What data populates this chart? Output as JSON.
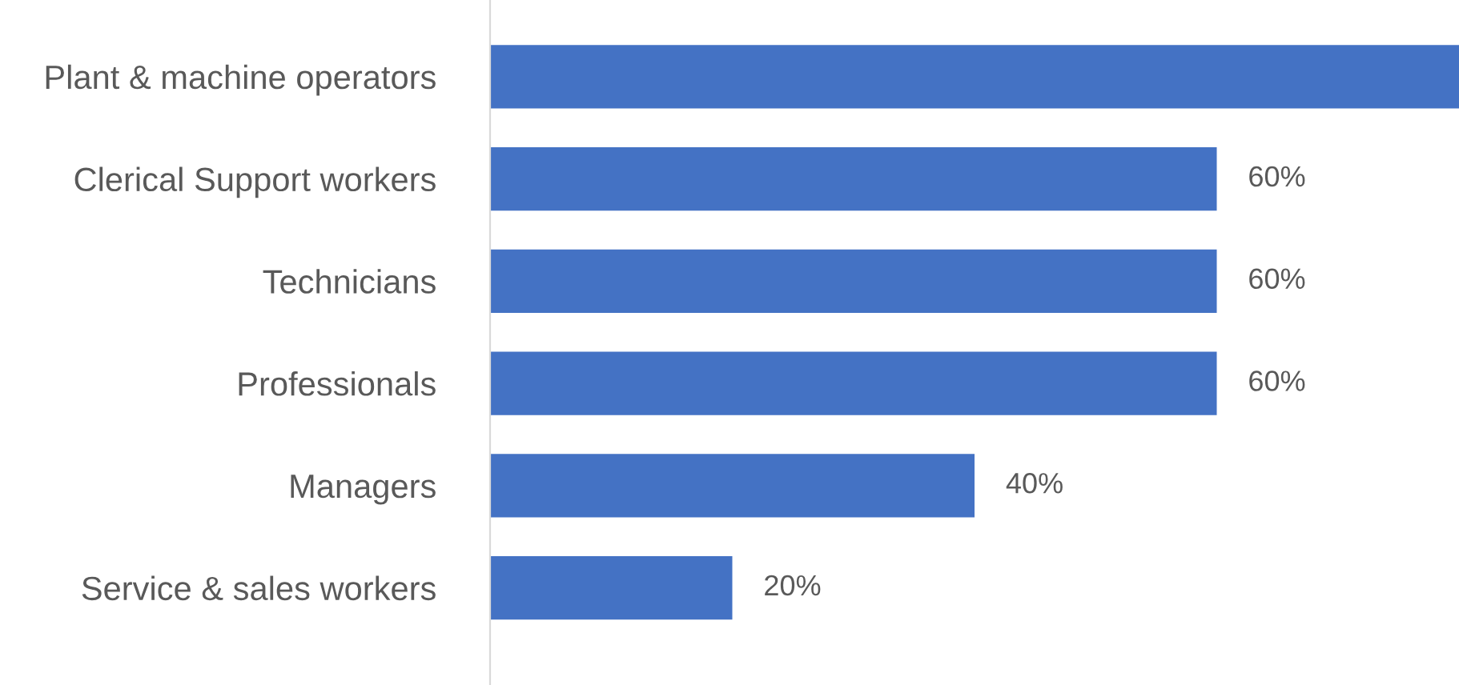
{
  "chart_data": {
    "type": "bar",
    "orientation": "horizontal",
    "categories": [
      "Plant & machine operators",
      "Clerical Support workers",
      "Technicians",
      "Professionals",
      "Managers",
      "Service & sales workers"
    ],
    "values": [
      80,
      60,
      60,
      60,
      40,
      20
    ],
    "value_labels": [
      null,
      "60%",
      "60%",
      "60%",
      "40%",
      "20%"
    ],
    "color": "#4472c4",
    "grid": false,
    "legend": false
  }
}
